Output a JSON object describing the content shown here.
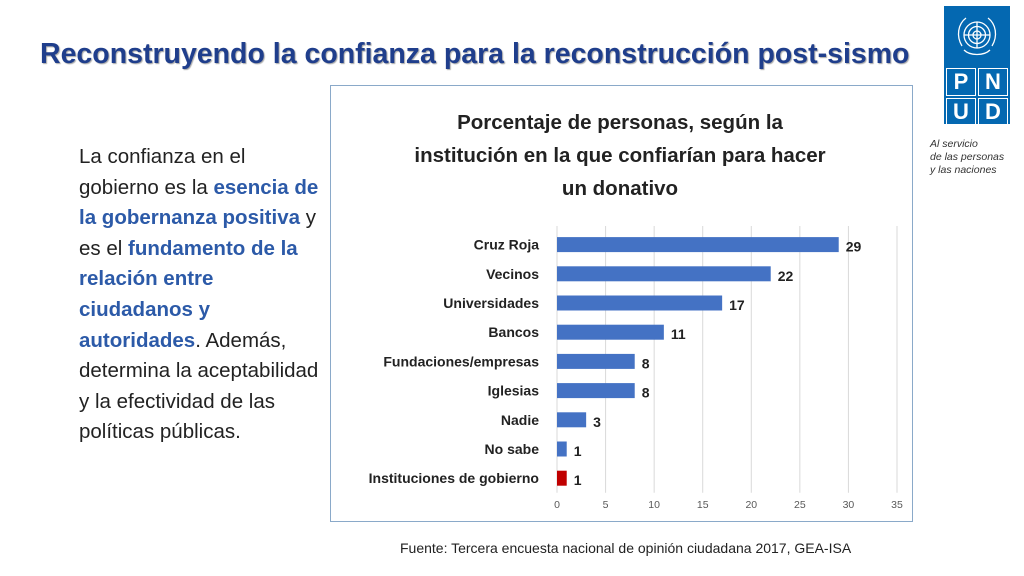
{
  "slide": {
    "title": "Reconstruyendo la confianza para la reconstrucción post-sismo",
    "logo_letters": [
      "P",
      "N",
      "U",
      "D"
    ],
    "tagline": [
      "Al servicio",
      "de las personas",
      "y las naciones"
    ],
    "body_segments": [
      {
        "text": "La confianza en el gobierno es la ",
        "highlight": false
      },
      {
        "text": "esencia de la gobernanza positiva",
        "highlight": true
      },
      {
        "text": " y es el ",
        "highlight": false
      },
      {
        "text": "fundamento de la relación entre ciudadanos y autoridades",
        "highlight": true
      },
      {
        "text": ". Además, determina la aceptabilidad y la efectividad de las políticas públicas.",
        "highlight": false
      }
    ],
    "source": "Fuente: Tercera encuesta nacional de opinión ciudadana 2017, GEA-ISA",
    "colors": {
      "title": "#1f3e8c",
      "highlight": "#2c5aa8",
      "logo": "#0468b1"
    }
  },
  "chart_data": {
    "type": "bar",
    "orientation": "horizontal",
    "title_lines": [
      "Porcentaje de personas, según la",
      "institución en la que confiarían para hacer",
      "un donativo"
    ],
    "categories": [
      "Cruz Roja",
      "Vecinos",
      "Universidades",
      "Bancos",
      "Fundaciones/empresas",
      "Iglesias",
      "Nadie",
      "No sabe",
      "Instituciones de gobierno"
    ],
    "values": [
      29,
      22,
      17,
      11,
      8,
      8,
      3,
      1,
      1
    ],
    "highlight_category": "Instituciones de gobierno",
    "xlim": [
      0,
      35
    ],
    "xticks": [
      0,
      5,
      10,
      15,
      20,
      25,
      30,
      35
    ],
    "grid": true,
    "colors": {
      "bar": "#4472c4",
      "highlight": "#c00000"
    }
  }
}
